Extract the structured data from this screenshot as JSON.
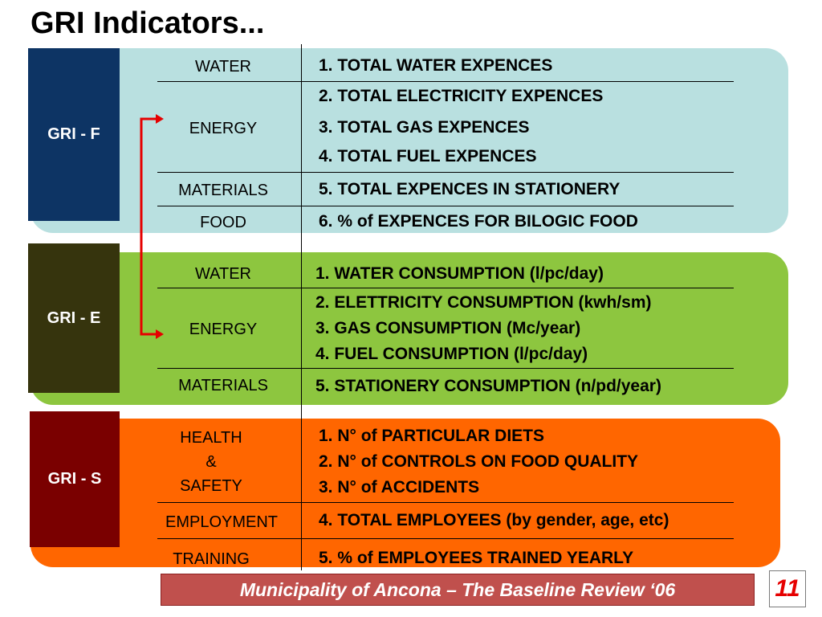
{
  "title": "GRI Indicators...",
  "sections": [
    {
      "label": "GRI - F",
      "panel_color": "#b9e0e0",
      "label_color": "#0d3464",
      "categories": [
        "WATER",
        "ENERGY",
        "MATERIALS",
        "FOOD"
      ],
      "items": [
        "1. TOTAL WATER EXPENCES",
        "2. TOTAL ELECTRICITY EXPENCES",
        "3. TOTAL GAS EXPENCES",
        "4. TOTAL FUEL EXPENCES",
        "5. TOTAL EXPENCES IN STATIONERY",
        "6. % of EXPENCES FOR BILOGIC FOOD"
      ]
    },
    {
      "label": "GRI - E",
      "panel_color": "#8dc63f",
      "label_color": "#36340d",
      "categories": [
        "WATER",
        "ENERGY",
        "MATERIALS"
      ],
      "items": [
        "1. WATER CONSUMPTION (l/pc/day)",
        "2. ELETTRICITY CONSUMPTION (kwh/sm)",
        "3. GAS  CONSUMPTION (Mc/year)",
        "4. FUEL CONSUMPTION (l/pc/day)",
        "5. STATIONERY CONSUMPTION (n/pd/year)"
      ]
    },
    {
      "label": "GRI - S",
      "panel_color": "#ff6600",
      "label_color": "#7a0000",
      "categories": [
        "HEALTH",
        "&",
        "SAFETY",
        "EMPLOYMENT",
        "TRAINING"
      ],
      "items": [
        "1. N° of PARTICULAR DIETS",
        "2. N° of CONTROLS ON FOOD QUALITY",
        "3. N° of ACCIDENTS",
        "4. TOTAL EMPLOYEES (by gender, age, etc)",
        "5. % of EMPLOYEES TRAINED YEARLY"
      ]
    }
  ],
  "arrow_color": "#e60000",
  "footer": "Municipality of Ancona – The Baseline Review ‘06",
  "page_number": "11"
}
